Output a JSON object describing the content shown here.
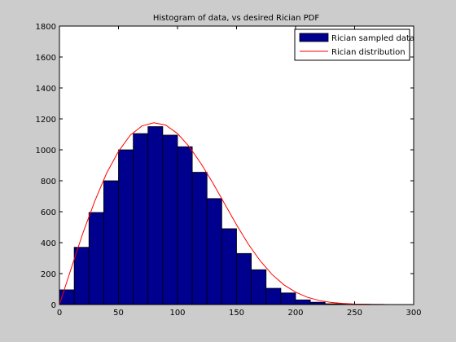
{
  "chart_data": {
    "type": "bar",
    "title": "Histogram of data, vs desired Rician PDF",
    "xlabel": "",
    "ylabel": "",
    "xlim": [
      0,
      300
    ],
    "ylim": [
      0,
      1800
    ],
    "xticks": [
      0,
      50,
      100,
      150,
      200,
      250,
      300
    ],
    "yticks": [
      0,
      200,
      400,
      600,
      800,
      1000,
      1200,
      1400,
      1600,
      1800
    ],
    "grid": false,
    "legend_position": "top-right",
    "histogram": {
      "name": "Rician sampled data",
      "color": "#00008f",
      "edge_color": "#000000",
      "bin_width": 12.5,
      "bin_starts": [
        0,
        12.5,
        25,
        37.5,
        50,
        62.5,
        75,
        87.5,
        100,
        112.5,
        125,
        137.5,
        150,
        162.5,
        175,
        187.5,
        200,
        212.5,
        225,
        237.5,
        250,
        262.5,
        275,
        287.5
      ],
      "values": [
        95,
        370,
        595,
        800,
        1000,
        1105,
        1150,
        1095,
        1020,
        855,
        685,
        490,
        330,
        225,
        105,
        75,
        30,
        15,
        5,
        3,
        2,
        1,
        0,
        0
      ]
    },
    "curve": {
      "name": "Rician distribution",
      "color": "#ff0000",
      "x": [
        0,
        10,
        20,
        30,
        40,
        50,
        60,
        70,
        80,
        90,
        100,
        110,
        120,
        130,
        140,
        150,
        160,
        170,
        180,
        190,
        200,
        210,
        220,
        230,
        240,
        250,
        260,
        280,
        300
      ],
      "y": [
        0,
        235,
        465,
        670,
        850,
        990,
        1095,
        1155,
        1175,
        1160,
        1105,
        1020,
        910,
        785,
        650,
        515,
        390,
        283,
        195,
        128,
        80,
        47,
        26,
        14,
        7,
        3,
        1,
        0,
        0
      ]
    }
  }
}
